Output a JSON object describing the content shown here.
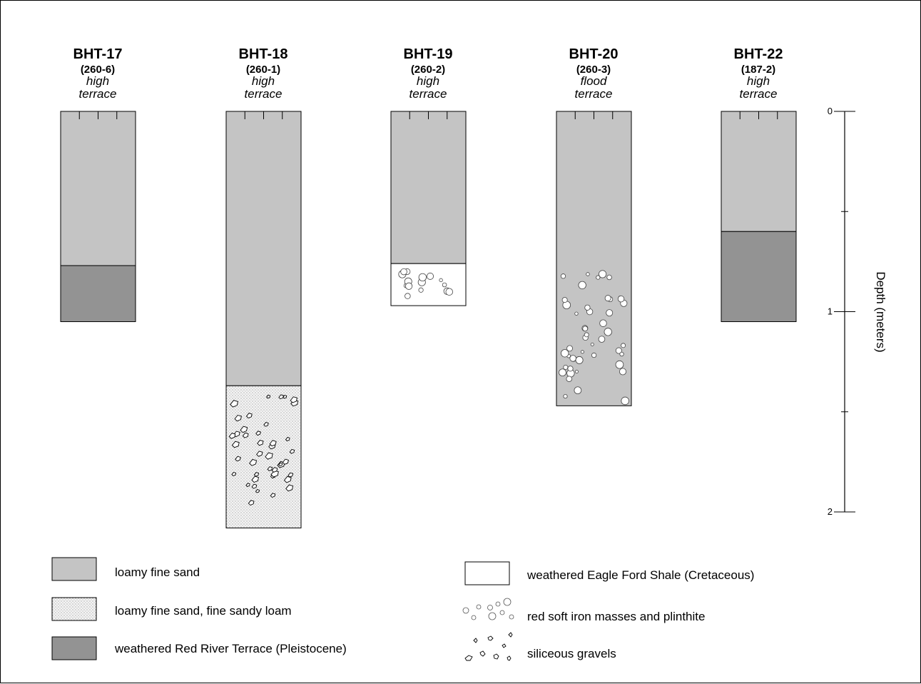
{
  "colors": {
    "loamy_fine_sand": "#c4c4c4",
    "red_river_terrace": "#939393",
    "eagle_ford_shale": "#ffffff",
    "stroke": "#000000"
  },
  "chart_data": {
    "type": "diagram",
    "axis": {
      "title": "Depth (meters)",
      "min": 0,
      "max": 2,
      "ticks": [
        0,
        0.5,
        1,
        1.5,
        2
      ],
      "tick_labels": [
        "0",
        "",
        "1",
        "",
        "2"
      ]
    },
    "columns": [
      {
        "name": "BHT-17",
        "code": "(260-6)",
        "desc_1": "high",
        "desc_2": "terrace",
        "layers": [
          {
            "unit": "loamy_fine_sand",
            "top": 0,
            "bottom": 0.77
          },
          {
            "unit": "red_river_terrace",
            "top": 0.77,
            "bottom": 1.05
          }
        ]
      },
      {
        "name": "BHT-18",
        "code": "(260-1)",
        "desc_1": "high",
        "desc_2": "terrace",
        "layers": [
          {
            "unit": "loamy_fine_sand",
            "top": 0,
            "bottom": 1.37
          },
          {
            "unit": "loamy_fine_sand_fine_sandy_loam",
            "top": 1.37,
            "bottom": 2.08,
            "overlay": "siliceous_gravels"
          }
        ]
      },
      {
        "name": "BHT-19",
        "code": "(260-2)",
        "desc_1": "high",
        "desc_2": "terrace",
        "layers": [
          {
            "unit": "loamy_fine_sand",
            "top": 0,
            "bottom": 0.76
          },
          {
            "unit": "eagle_ford_shale",
            "top": 0.76,
            "bottom": 0.97,
            "overlay": "iron_masses"
          }
        ]
      },
      {
        "name": "BHT-20",
        "code": "(260-3)",
        "desc_1": "flood",
        "desc_2": "terrace",
        "layers": [
          {
            "unit": "loamy_fine_sand",
            "top": 0,
            "bottom": 1.47,
            "overlay": "iron_masses",
            "overlay_top": 0.78
          }
        ]
      },
      {
        "name": "BHT-22",
        "code": "(187-2)",
        "desc_1": "high",
        "desc_2": "terrace",
        "layers": [
          {
            "unit": "loamy_fine_sand",
            "top": 0,
            "bottom": 0.6
          },
          {
            "unit": "red_river_terrace",
            "top": 0.6,
            "bottom": 1.05
          }
        ]
      }
    ],
    "legend": [
      {
        "key": "loamy_fine_sand",
        "label": "loamy fine sand"
      },
      {
        "key": "loamy_fine_sand_fine_sandy_loam",
        "label": "loamy fine sand, fine sandy loam"
      },
      {
        "key": "red_river_terrace",
        "label": "weathered Red River Terrace (Pleistocene)"
      },
      {
        "key": "eagle_ford_shale",
        "label": "weathered Eagle Ford Shale (Cretaceous)"
      },
      {
        "key": "iron_masses",
        "label": "red soft iron masses and plinthite"
      },
      {
        "key": "siliceous_gravels",
        "label": "siliceous gravels"
      }
    ]
  }
}
